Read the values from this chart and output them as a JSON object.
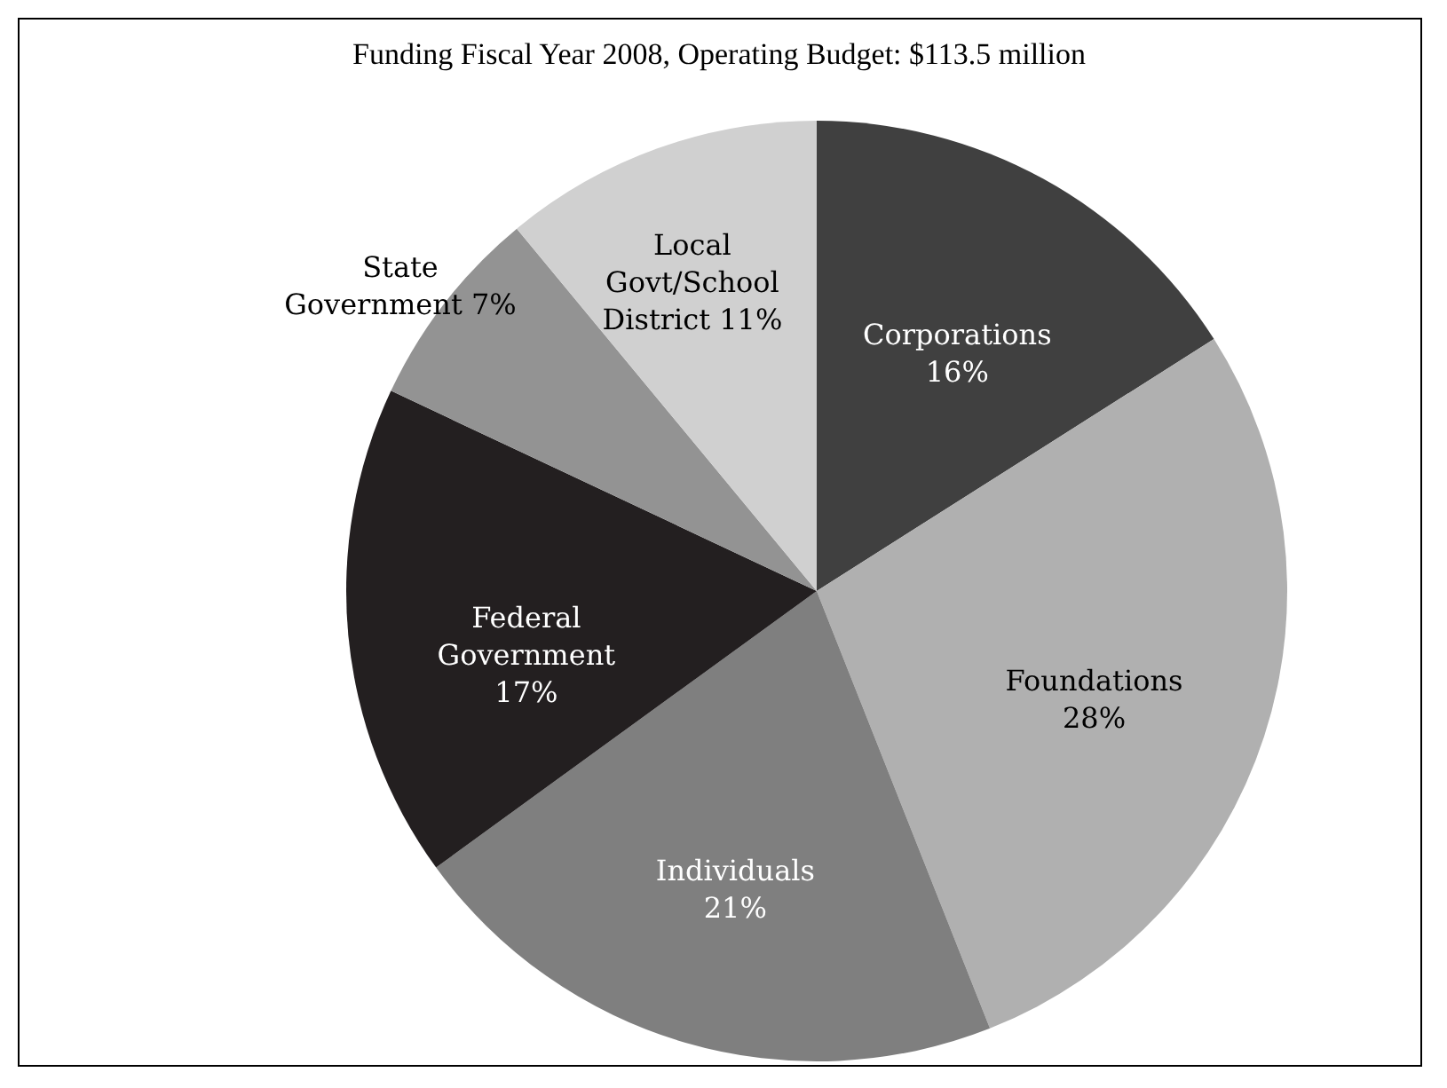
{
  "chart_data": {
    "type": "pie",
    "title": "Funding Fiscal Year 2008, Operating Budget: $113.5 million",
    "categories": [
      "Corporations",
      "Foundations",
      "Individuals",
      "Federal Government",
      "State Government",
      "Local Govt/School District"
    ],
    "values": [
      16,
      28,
      21,
      17,
      7,
      11
    ],
    "colors": [
      "#404040",
      "#b0b0b0",
      "#7f7f7f",
      "#231f20",
      "#939393",
      "#d0d0d0"
    ],
    "value_labels": [
      "16%",
      "28%",
      "21%",
      "17%",
      "7%",
      "11%"
    ],
    "legend": false
  }
}
